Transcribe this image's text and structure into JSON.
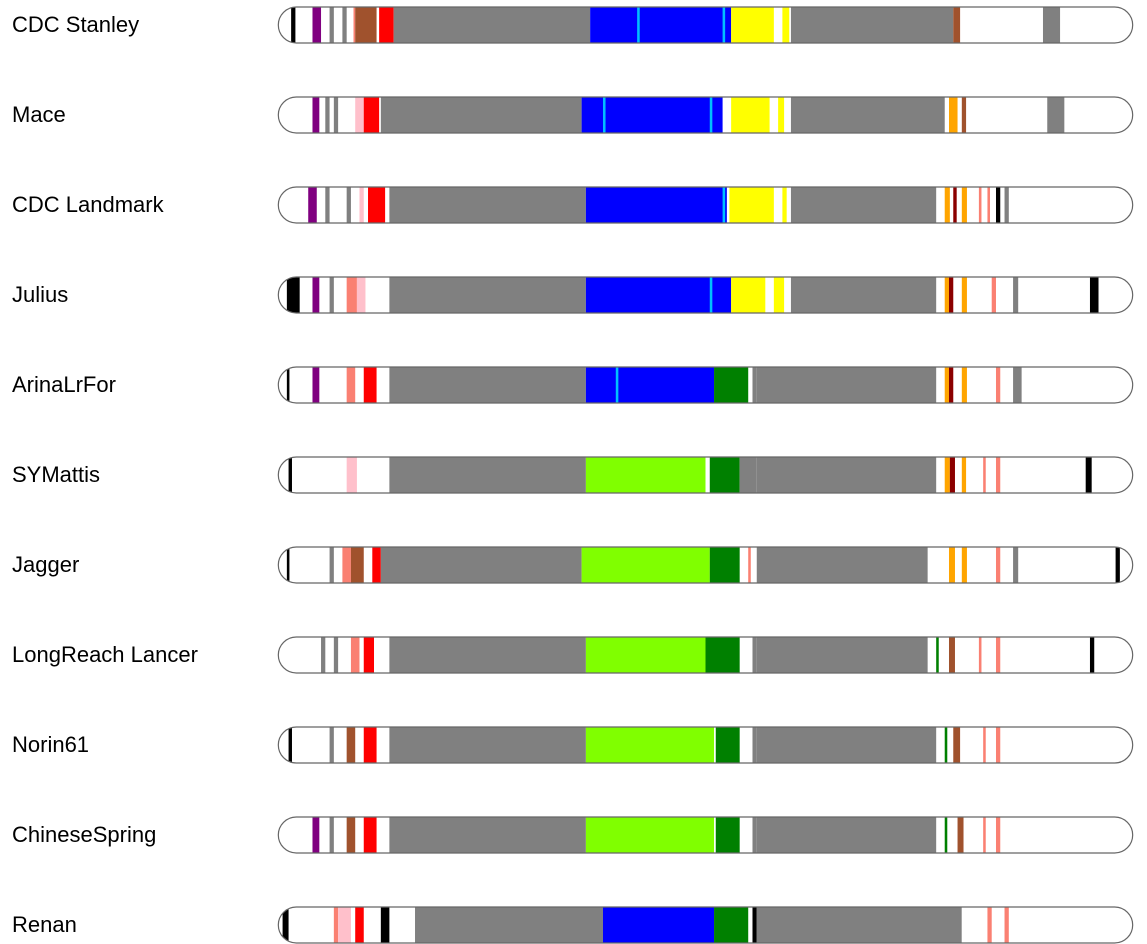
{
  "chart_data": {
    "type": "chromosome-haplotype-map",
    "axis_range": [
      0,
      1
    ],
    "colors": {
      "gray": "#808080",
      "white": "#ffffff",
      "black": "#000000",
      "purple": "#800080",
      "brown": "#a0522d",
      "red": "#ff0000",
      "pink": "#ffc0cb",
      "salmon": "#fa8072",
      "blue": "#0000ff",
      "cyan": "#00bfff",
      "yellow": "#ffff00",
      "green": "#008000",
      "lime": "#80ff00",
      "orange": "#ffa500",
      "darkred": "#8b0000"
    },
    "cultivars": [
      {
        "name": "CDC Stanley",
        "x_start": 0.005,
        "x_end": 0.995,
        "segments": [
          [
            0.0,
            0.1,
            "white"
          ],
          [
            0.015,
            0.02,
            "black"
          ],
          [
            0.04,
            0.05,
            "purple"
          ],
          [
            0.06,
            0.065,
            "gray"
          ],
          [
            0.075,
            0.08,
            "gray"
          ],
          [
            0.088,
            0.09,
            "salmon"
          ],
          [
            0.09,
            0.115,
            "brown"
          ],
          [
            0.118,
            0.135,
            "red"
          ],
          [
            0.135,
            0.365,
            "gray"
          ],
          [
            0.365,
            0.53,
            "blue"
          ],
          [
            0.42,
            0.423,
            "cyan"
          ],
          [
            0.52,
            0.523,
            "cyan"
          ],
          [
            0.53,
            0.58,
            "yellow"
          ],
          [
            0.59,
            0.598,
            "yellow"
          ],
          [
            0.6,
            0.79,
            "gray"
          ],
          [
            0.79,
            0.798,
            "brown"
          ],
          [
            0.805,
            0.807,
            "salmon"
          ],
          [
            0.8,
            0.895,
            "white"
          ],
          [
            0.895,
            0.915,
            "gray"
          ]
        ]
      },
      {
        "name": "Mace",
        "x_start": 0.005,
        "x_end": 0.995,
        "segments": [
          [
            0.0,
            0.12,
            "white"
          ],
          [
            0.04,
            0.048,
            "purple"
          ],
          [
            0.055,
            0.06,
            "gray"
          ],
          [
            0.065,
            0.07,
            "gray"
          ],
          [
            0.09,
            0.1,
            "pink"
          ],
          [
            0.1,
            0.118,
            "red"
          ],
          [
            0.12,
            0.355,
            "gray"
          ],
          [
            0.355,
            0.52,
            "blue"
          ],
          [
            0.38,
            0.383,
            "cyan"
          ],
          [
            0.505,
            0.508,
            "cyan"
          ],
          [
            0.53,
            0.575,
            "yellow"
          ],
          [
            0.585,
            0.592,
            "yellow"
          ],
          [
            0.6,
            0.78,
            "gray"
          ],
          [
            0.785,
            0.795,
            "orange"
          ],
          [
            0.8,
            0.805,
            "brown"
          ],
          [
            0.81,
            0.9,
            "white"
          ],
          [
            0.9,
            0.92,
            "gray"
          ]
        ]
      },
      {
        "name": "CDC Landmark",
        "x_start": 0.005,
        "x_end": 0.995,
        "segments": [
          [
            0.0,
            0.13,
            "white"
          ],
          [
            0.035,
            0.045,
            "purple"
          ],
          [
            0.055,
            0.06,
            "gray"
          ],
          [
            0.08,
            0.085,
            "gray"
          ],
          [
            0.095,
            0.1,
            "pink"
          ],
          [
            0.105,
            0.125,
            "red"
          ],
          [
            0.13,
            0.36,
            "gray"
          ],
          [
            0.36,
            0.525,
            "blue"
          ],
          [
            0.52,
            0.523,
            "cyan"
          ],
          [
            0.528,
            0.58,
            "yellow"
          ],
          [
            0.59,
            0.595,
            "yellow"
          ],
          [
            0.6,
            0.77,
            "gray"
          ],
          [
            0.78,
            0.786,
            "orange"
          ],
          [
            0.79,
            0.794,
            "darkred"
          ],
          [
            0.8,
            0.806,
            "orange"
          ],
          [
            0.812,
            0.96,
            "white"
          ],
          [
            0.82,
            0.823,
            "salmon"
          ],
          [
            0.83,
            0.833,
            "salmon"
          ],
          [
            0.84,
            0.845,
            "black"
          ],
          [
            0.85,
            0.855,
            "gray"
          ]
        ]
      },
      {
        "name": "Julius",
        "x_start": 0.005,
        "x_end": 0.995,
        "segments": [
          [
            0.0,
            0.13,
            "white"
          ],
          [
            0.01,
            0.025,
            "black"
          ],
          [
            0.04,
            0.048,
            "purple"
          ],
          [
            0.06,
            0.065,
            "gray"
          ],
          [
            0.08,
            0.092,
            "salmon"
          ],
          [
            0.092,
            0.102,
            "pink"
          ],
          [
            0.13,
            0.36,
            "gray"
          ],
          [
            0.36,
            0.53,
            "blue"
          ],
          [
            0.505,
            0.508,
            "cyan"
          ],
          [
            0.53,
            0.57,
            "yellow"
          ],
          [
            0.58,
            0.592,
            "yellow"
          ],
          [
            0.6,
            0.77,
            "gray"
          ],
          [
            0.78,
            0.785,
            "orange"
          ],
          [
            0.785,
            0.79,
            "darkred"
          ],
          [
            0.8,
            0.806,
            "orange"
          ],
          [
            0.812,
            0.96,
            "white"
          ],
          [
            0.835,
            0.84,
            "salmon"
          ],
          [
            0.86,
            0.866,
            "gray"
          ],
          [
            0.95,
            0.96,
            "black"
          ]
        ]
      },
      {
        "name": "ArinaLrFor",
        "x_start": 0.005,
        "x_end": 0.995,
        "segments": [
          [
            0.0,
            0.13,
            "white"
          ],
          [
            0.01,
            0.013,
            "black"
          ],
          [
            0.04,
            0.048,
            "purple"
          ],
          [
            0.08,
            0.09,
            "salmon"
          ],
          [
            0.1,
            0.115,
            "red"
          ],
          [
            0.13,
            0.36,
            "gray"
          ],
          [
            0.36,
            0.51,
            "blue"
          ],
          [
            0.395,
            0.398,
            "cyan"
          ],
          [
            0.51,
            0.55,
            "green"
          ],
          [
            0.555,
            0.56,
            "gray"
          ],
          [
            0.56,
            0.77,
            "gray"
          ],
          [
            0.78,
            0.785,
            "orange"
          ],
          [
            0.785,
            0.79,
            "darkred"
          ],
          [
            0.8,
            0.806,
            "orange"
          ],
          [
            0.812,
            0.96,
            "white"
          ],
          [
            0.84,
            0.845,
            "salmon"
          ],
          [
            0.86,
            0.87,
            "gray"
          ]
        ]
      },
      {
        "name": "SYMattis",
        "x_start": 0.005,
        "x_end": 0.995,
        "segments": [
          [
            0.0,
            0.13,
            "white"
          ],
          [
            0.012,
            0.016,
            "black"
          ],
          [
            0.08,
            0.092,
            "pink"
          ],
          [
            0.13,
            0.36,
            "gray"
          ],
          [
            0.36,
            0.5,
            "lime"
          ],
          [
            0.505,
            0.54,
            "green"
          ],
          [
            0.54,
            0.56,
            "gray"
          ],
          [
            0.56,
            0.77,
            "gray"
          ],
          [
            0.78,
            0.786,
            "orange"
          ],
          [
            0.786,
            0.792,
            "darkred"
          ],
          [
            0.8,
            0.805,
            "orange"
          ],
          [
            0.81,
            0.96,
            "white"
          ],
          [
            0.825,
            0.828,
            "salmon"
          ],
          [
            0.84,
            0.845,
            "salmon"
          ],
          [
            0.945,
            0.952,
            "black"
          ]
        ]
      },
      {
        "name": "Jagger",
        "x_start": 0.005,
        "x_end": 0.995,
        "segments": [
          [
            0.0,
            0.12,
            "white"
          ],
          [
            0.01,
            0.013,
            "black"
          ],
          [
            0.06,
            0.065,
            "gray"
          ],
          [
            0.075,
            0.085,
            "salmon"
          ],
          [
            0.085,
            0.1,
            "brown"
          ],
          [
            0.11,
            0.12,
            "red"
          ],
          [
            0.12,
            0.355,
            "gray"
          ],
          [
            0.355,
            0.505,
            "lime"
          ],
          [
            0.505,
            0.54,
            "green"
          ],
          [
            0.55,
            0.553,
            "salmon"
          ],
          [
            0.56,
            0.76,
            "gray"
          ],
          [
            0.785,
            0.792,
            "orange"
          ],
          [
            0.8,
            0.806,
            "orange"
          ],
          [
            0.81,
            0.985,
            "white"
          ],
          [
            0.84,
            0.845,
            "salmon"
          ],
          [
            0.86,
            0.866,
            "gray"
          ],
          [
            0.98,
            0.985,
            "black"
          ]
        ]
      },
      {
        "name": "LongReach Lancer",
        "x_start": 0.005,
        "x_end": 0.995,
        "segments": [
          [
            0.0,
            0.13,
            "white"
          ],
          [
            0.05,
            0.055,
            "gray"
          ],
          [
            0.065,
            0.07,
            "gray"
          ],
          [
            0.085,
            0.095,
            "salmon"
          ],
          [
            0.1,
            0.112,
            "red"
          ],
          [
            0.13,
            0.36,
            "gray"
          ],
          [
            0.36,
            0.5,
            "lime"
          ],
          [
            0.5,
            0.54,
            "green"
          ],
          [
            0.555,
            0.56,
            "gray"
          ],
          [
            0.56,
            0.76,
            "gray"
          ],
          [
            0.77,
            0.773,
            "green"
          ],
          [
            0.785,
            0.792,
            "brown"
          ],
          [
            0.8,
            0.96,
            "white"
          ],
          [
            0.82,
            0.823,
            "salmon"
          ],
          [
            0.84,
            0.845,
            "salmon"
          ],
          [
            0.95,
            0.955,
            "black"
          ]
        ]
      },
      {
        "name": "Norin61",
        "x_start": 0.005,
        "x_end": 0.995,
        "segments": [
          [
            0.0,
            0.13,
            "white"
          ],
          [
            0.012,
            0.016,
            "black"
          ],
          [
            0.06,
            0.065,
            "gray"
          ],
          [
            0.08,
            0.09,
            "brown"
          ],
          [
            0.1,
            0.115,
            "red"
          ],
          [
            0.13,
            0.36,
            "gray"
          ],
          [
            0.36,
            0.51,
            "lime"
          ],
          [
            0.512,
            0.54,
            "green"
          ],
          [
            0.555,
            0.56,
            "gray"
          ],
          [
            0.56,
            0.77,
            "gray"
          ],
          [
            0.78,
            0.783,
            "green"
          ],
          [
            0.79,
            0.798,
            "brown"
          ],
          [
            0.805,
            0.96,
            "white"
          ],
          [
            0.825,
            0.828,
            "salmon"
          ],
          [
            0.84,
            0.845,
            "salmon"
          ]
        ]
      },
      {
        "name": "ChineseSpring",
        "x_start": 0.005,
        "x_end": 0.995,
        "segments": [
          [
            0.0,
            0.13,
            "white"
          ],
          [
            0.04,
            0.048,
            "purple"
          ],
          [
            0.06,
            0.065,
            "gray"
          ],
          [
            0.08,
            0.09,
            "brown"
          ],
          [
            0.1,
            0.115,
            "red"
          ],
          [
            0.13,
            0.36,
            "gray"
          ],
          [
            0.36,
            0.51,
            "lime"
          ],
          [
            0.512,
            0.54,
            "green"
          ],
          [
            0.555,
            0.56,
            "gray"
          ],
          [
            0.56,
            0.77,
            "gray"
          ],
          [
            0.78,
            0.783,
            "green"
          ],
          [
            0.795,
            0.802,
            "brown"
          ],
          [
            0.805,
            0.96,
            "white"
          ],
          [
            0.825,
            0.828,
            "salmon"
          ],
          [
            0.84,
            0.845,
            "salmon"
          ]
        ]
      },
      {
        "name": "Renan",
        "x_start": 0.005,
        "x_end": 0.995,
        "segments": [
          [
            0.0,
            0.16,
            "white"
          ],
          [
            0.005,
            0.012,
            "black"
          ],
          [
            0.065,
            0.07,
            "salmon"
          ],
          [
            0.07,
            0.085,
            "pink"
          ],
          [
            0.09,
            0.1,
            "red"
          ],
          [
            0.12,
            0.13,
            "black"
          ],
          [
            0.16,
            0.38,
            "gray"
          ],
          [
            0.38,
            0.51,
            "blue"
          ],
          [
            0.51,
            0.55,
            "green"
          ],
          [
            0.555,
            0.56,
            "black"
          ],
          [
            0.56,
            0.8,
            "gray"
          ],
          [
            0.8,
            0.96,
            "white"
          ],
          [
            0.83,
            0.835,
            "salmon"
          ],
          [
            0.85,
            0.855,
            "salmon"
          ]
        ]
      }
    ]
  }
}
